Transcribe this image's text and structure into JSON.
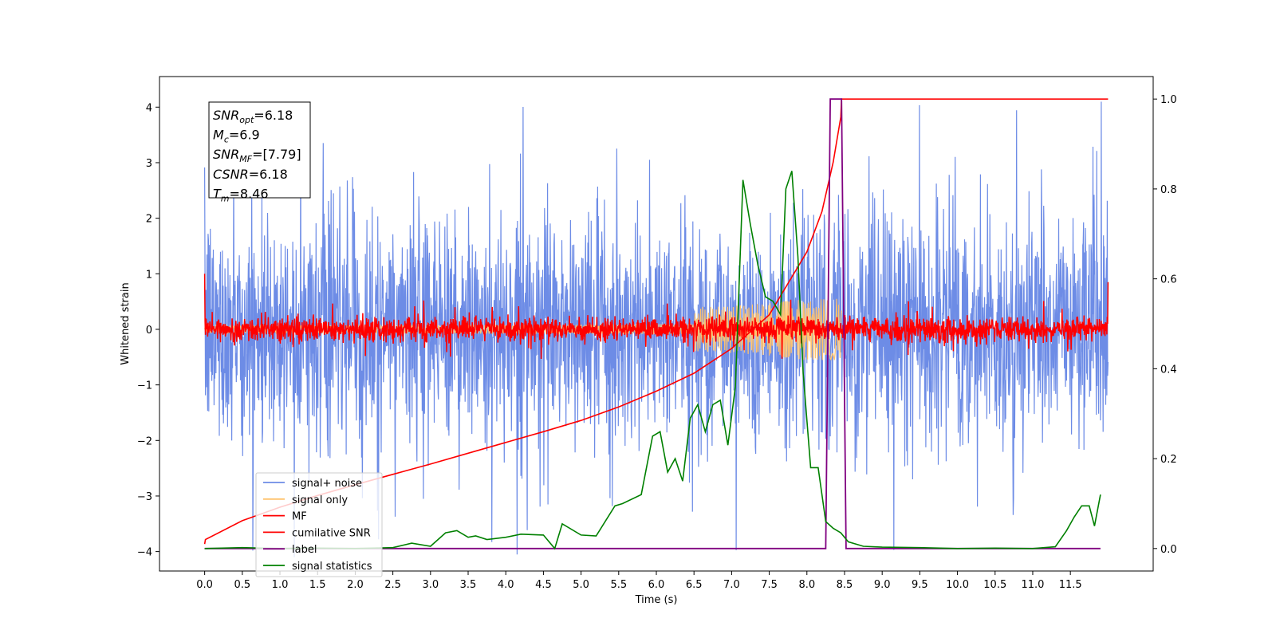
{
  "chart_data": {
    "type": "line",
    "xlabel": "Time (s)",
    "ylabel": "Whitened strain",
    "xlim": [
      -0.6,
      12.6
    ],
    "ylim": [
      -4.35,
      4.55
    ],
    "y2lim": [
      -0.05,
      1.05
    ],
    "x_ticks": [
      0.0,
      0.5,
      1.0,
      1.5,
      2.0,
      2.5,
      3.0,
      3.5,
      4.0,
      4.5,
      5.0,
      5.5,
      6.0,
      6.5,
      7.0,
      7.5,
      8.0,
      8.5,
      9.0,
      9.5,
      10.0,
      10.5,
      11.0,
      11.5
    ],
    "x_tick_labels": [
      "0.0",
      "0.5",
      "1.0",
      "1.5",
      "2.0",
      "2.5",
      "3.0",
      "3.5",
      "4.0",
      "4.5",
      "5.0",
      "5.5",
      "6.0",
      "6.5",
      "7.0",
      "7.5",
      "8.0",
      "8.5",
      "9.0",
      "9.5",
      "10.0",
      "10.5",
      "11.0",
      "11.5"
    ],
    "y_ticks": [
      4,
      3,
      2,
      1,
      0,
      -1,
      -2,
      -3,
      -4
    ],
    "y_tick_labels": [
      "4",
      "3",
      "2",
      "1",
      "0",
      "−1",
      "−2",
      "−3",
      "−4"
    ],
    "y2_ticks": [
      1.0,
      0.8,
      0.6,
      0.4,
      0.2,
      0.0
    ],
    "y2_tick_labels": [
      "1.0",
      "0.8",
      "0.6",
      "0.4",
      "0.2",
      "0.0"
    ],
    "grid": false,
    "legend_position": "bottom-left",
    "colors": {
      "noise": "#6d8ce6",
      "signal": "#ffc36e",
      "mf": "#ff0000",
      "csnr": "#ff0000",
      "label": "#800080",
      "stats": "#008000"
    },
    "series": [
      {
        "name": "signal+ noise",
        "axis": "left",
        "description_points": "noise band",
        "x_range": [
          0.0,
          12.0
        ],
        "amplitude_typical": 2.3,
        "amplitude_max": 4.1
      },
      {
        "name": "signal only",
        "axis": "left",
        "x_range": [
          0.0,
          8.46
        ],
        "peak_time": 8.46,
        "peak_amplitude": 0.55
      },
      {
        "name": "MF",
        "axis": "left",
        "x_range": [
          0.0,
          12.0
        ],
        "start_value": 1.0,
        "end_value": 0.85,
        "amplitude_typical": 0.2
      },
      {
        "name": "cumilative SNR",
        "axis": "right",
        "x": [
          0.0,
          0.01,
          0.5,
          1.0,
          1.5,
          2.0,
          2.5,
          3.0,
          3.5,
          4.0,
          4.5,
          5.0,
          5.5,
          6.0,
          6.5,
          7.0,
          7.5,
          8.0,
          8.2,
          8.35,
          8.45,
          8.46,
          12.0
        ],
        "y": [
          0.01,
          0.02,
          0.062,
          0.092,
          0.118,
          0.142,
          0.165,
          0.188,
          0.212,
          0.236,
          0.26,
          0.285,
          0.315,
          0.35,
          0.39,
          0.445,
          0.52,
          0.66,
          0.75,
          0.86,
          0.96,
          1.0,
          1.0
        ]
      },
      {
        "name": "label",
        "axis": "right",
        "x": [
          0.0,
          8.25,
          8.31,
          8.4,
          8.46,
          8.52,
          11.9
        ],
        "y": [
          0.0,
          0.0,
          1.0,
          1.0,
          1.0,
          0.0,
          0.0
        ]
      },
      {
        "name": "signal statistics",
        "axis": "right",
        "x": [
          0.0,
          0.5,
          1.0,
          1.5,
          2.0,
          2.5,
          2.75,
          3.0,
          3.2,
          3.35,
          3.5,
          3.6,
          3.75,
          4.0,
          4.2,
          4.5,
          4.65,
          4.75,
          5.0,
          5.2,
          5.45,
          5.55,
          5.8,
          5.95,
          6.05,
          6.15,
          6.25,
          6.35,
          6.45,
          6.55,
          6.65,
          6.75,
          6.85,
          6.95,
          7.05,
          7.15,
          7.25,
          7.35,
          7.45,
          7.55,
          7.65,
          7.72,
          7.8,
          7.88,
          7.95,
          8.05,
          8.15,
          8.25,
          8.35,
          8.45,
          8.55,
          8.75,
          9.0,
          9.5,
          10.0,
          10.5,
          11.0,
          11.3,
          11.45,
          11.55,
          11.65,
          11.75,
          11.82,
          11.9
        ],
        "y": [
          0.0,
          0.002,
          0.0,
          0.001,
          0.0,
          0.002,
          0.012,
          0.005,
          0.035,
          0.04,
          0.025,
          0.028,
          0.02,
          0.025,
          0.032,
          0.03,
          0.0,
          0.055,
          0.03,
          0.028,
          0.095,
          0.1,
          0.12,
          0.25,
          0.26,
          0.17,
          0.2,
          0.15,
          0.29,
          0.32,
          0.26,
          0.32,
          0.33,
          0.23,
          0.36,
          0.82,
          0.72,
          0.63,
          0.56,
          0.55,
          0.52,
          0.8,
          0.84,
          0.65,
          0.39,
          0.18,
          0.18,
          0.06,
          0.045,
          0.035,
          0.015,
          0.005,
          0.003,
          0.002,
          0.0,
          0.001,
          0.0,
          0.004,
          0.04,
          0.07,
          0.095,
          0.095,
          0.05,
          0.12
        ]
      }
    ]
  },
  "annotation_box": {
    "lines": [
      {
        "sym": "SNR",
        "sub": "opt",
        "value": "=6.18"
      },
      {
        "sym": "M",
        "sub": "c",
        "value": "=6.9"
      },
      {
        "sym": "SNR",
        "sub": "MF",
        "value": "=[7.79]"
      },
      {
        "sym": "CSNR",
        "sub": "",
        "value": "=6.18"
      },
      {
        "sym": "T",
        "sub": "m",
        "value": "=8.46"
      }
    ]
  },
  "legend": {
    "items": [
      {
        "label": "signal+ noise",
        "color": "#6d8ce6"
      },
      {
        "label": "signal only",
        "color": "#ffc36e"
      },
      {
        "label": "MF",
        "color": "#ff0000"
      },
      {
        "label": "cumilative SNR",
        "color": "#ff0000"
      },
      {
        "label": "label",
        "color": "#800080"
      },
      {
        "label": "signal statistics",
        "color": "#008000"
      }
    ]
  }
}
